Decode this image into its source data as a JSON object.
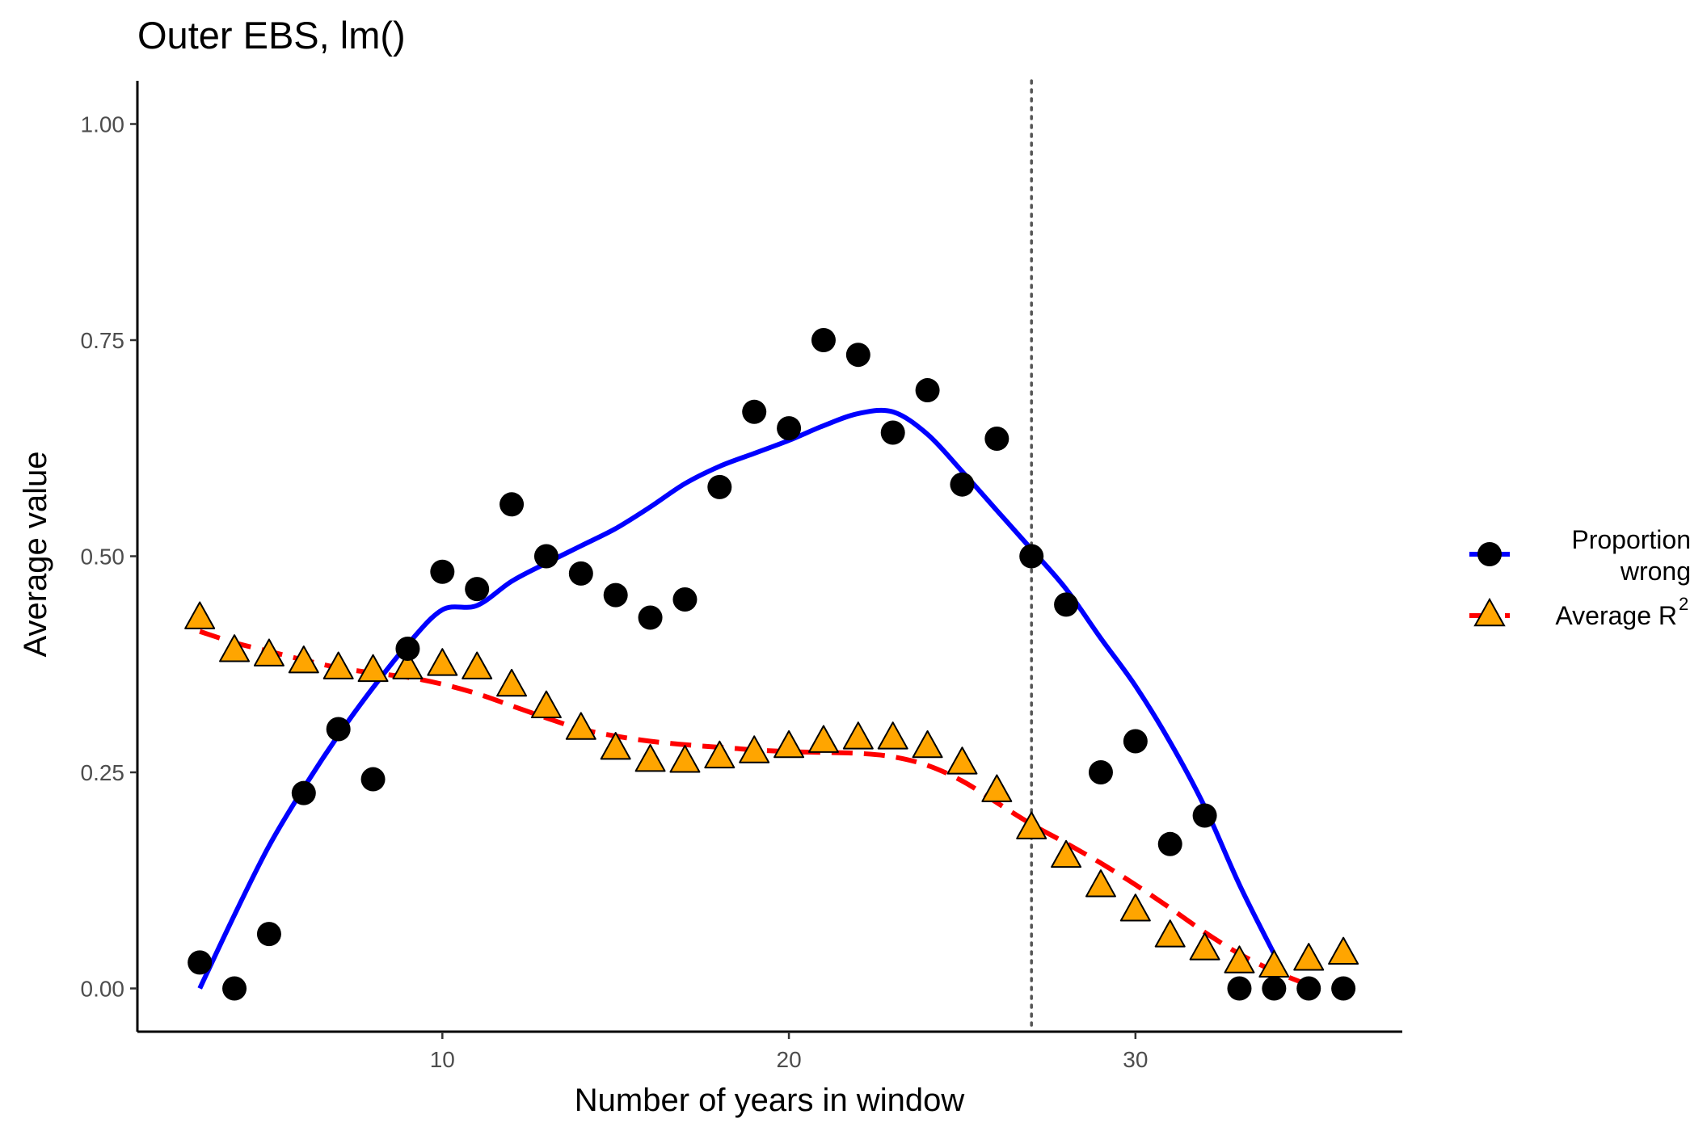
{
  "chart_data": {
    "type": "scatter",
    "title": "Outer EBS, lm()",
    "xlabel": "Number of years in window",
    "ylabel": "Average value",
    "xlim": [
      1.2,
      37.7
    ],
    "ylim": [
      -0.05,
      1.05
    ],
    "x_ticks": [
      10,
      20,
      30
    ],
    "x_tick_labels": [
      "10",
      "20",
      "30"
    ],
    "y_ticks": [
      0,
      0.25,
      0.5,
      0.75,
      1.0
    ],
    "y_tick_labels": [
      "0.00",
      "0.25",
      "0.50",
      "0.75",
      "1.00"
    ],
    "vline_x": 27,
    "grid": false,
    "legend_position": "right",
    "series": [
      {
        "name_line1": "Proportion",
        "name_line2": "wrong",
        "marker": "circle",
        "marker_color": "#000000",
        "line_color": "#0000ff",
        "line_style": "solid",
        "x": [
          3,
          4,
          5,
          6,
          7,
          8,
          9,
          10,
          11,
          12,
          13,
          14,
          15,
          16,
          17,
          18,
          19,
          20,
          21,
          22,
          23,
          24,
          25,
          26,
          27,
          28,
          29,
          30,
          31,
          32,
          33,
          34,
          35,
          36
        ],
        "values": [
          0.03,
          0.0,
          0.063,
          0.226,
          0.3,
          0.242,
          0.393,
          0.482,
          0.462,
          0.56,
          0.5,
          0.48,
          0.455,
          0.429,
          0.45,
          0.58,
          0.667,
          0.648,
          0.75,
          0.733,
          0.643,
          0.692,
          0.583,
          0.636,
          0.5,
          0.444,
          0.25,
          0.286,
          0.167,
          0.2,
          0.0,
          0.0,
          0.0,
          0.0
        ],
        "smooth_x": [
          3,
          4,
          5,
          6,
          7,
          8,
          9,
          10,
          11,
          12,
          13,
          14,
          15,
          16,
          17,
          18,
          19,
          20,
          21,
          22,
          23,
          24,
          25,
          26,
          27,
          28,
          29,
          30,
          31,
          32,
          33,
          34
        ],
        "smooth_values": [
          0.0,
          0.085,
          0.165,
          0.232,
          0.293,
          0.348,
          0.398,
          0.438,
          0.443,
          0.471,
          0.492,
          0.512,
          0.532,
          0.557,
          0.584,
          0.604,
          0.619,
          0.634,
          0.651,
          0.665,
          0.667,
          0.641,
          0.598,
          0.553,
          0.508,
          0.462,
          0.405,
          0.35,
          0.285,
          0.21,
          0.12,
          0.04
        ]
      },
      {
        "name_prefix": "Average R",
        "name_sup": "2",
        "marker": "triangle",
        "marker_color": "#ffa500",
        "line_color": "#ff0000",
        "line_style": "dashed",
        "x": [
          3,
          4,
          5,
          6,
          7,
          8,
          9,
          10,
          11,
          12,
          13,
          14,
          15,
          16,
          17,
          18,
          19,
          20,
          21,
          22,
          23,
          24,
          25,
          26,
          27,
          28,
          29,
          30,
          31,
          32,
          33,
          34,
          35,
          36
        ],
        "values": [
          0.428,
          0.39,
          0.385,
          0.377,
          0.37,
          0.367,
          0.37,
          0.374,
          0.37,
          0.35,
          0.325,
          0.3,
          0.277,
          0.263,
          0.262,
          0.267,
          0.273,
          0.279,
          0.285,
          0.289,
          0.289,
          0.279,
          0.26,
          0.228,
          0.185,
          0.152,
          0.118,
          0.09,
          0.06,
          0.045,
          0.03,
          0.025,
          0.033,
          0.04
        ],
        "smooth_x": [
          3,
          4,
          5,
          6,
          7,
          8,
          9,
          10,
          11,
          12,
          13,
          14,
          15,
          16,
          17,
          18,
          19,
          20,
          21,
          22,
          23,
          24,
          25,
          26,
          27,
          28,
          29,
          30,
          31,
          32,
          33,
          34,
          35
        ],
        "smooth_values": [
          0.413,
          0.4,
          0.39,
          0.38,
          0.371,
          0.365,
          0.36,
          0.352,
          0.341,
          0.327,
          0.313,
          0.3,
          0.292,
          0.286,
          0.282,
          0.279,
          0.276,
          0.274,
          0.273,
          0.272,
          0.268,
          0.258,
          0.24,
          0.215,
          0.19,
          0.168,
          0.145,
          0.12,
          0.093,
          0.065,
          0.04,
          0.02,
          0.004
        ]
      }
    ]
  }
}
